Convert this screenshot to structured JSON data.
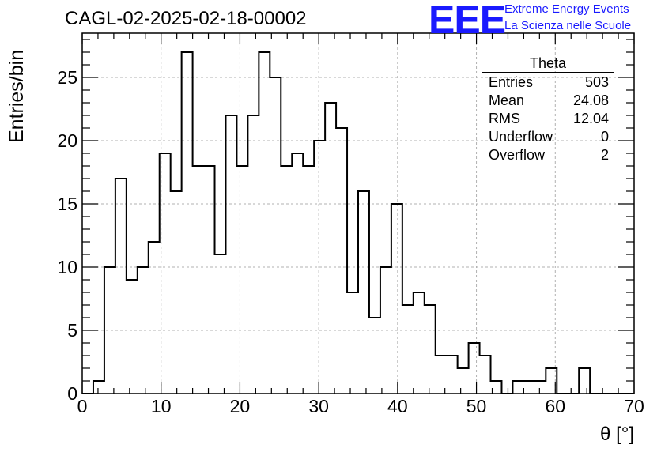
{
  "title": "CAGL-02-2025-02-18-00002",
  "logo": {
    "mark": "EEE",
    "line1": "Extreme Energy Events",
    "line2": "La Scienza nelle Scuole",
    "color": "#1a1aff"
  },
  "stats": {
    "name": "Theta",
    "rows": [
      {
        "label": "Entries",
        "value": "503"
      },
      {
        "label": "Mean",
        "value": "24.08"
      },
      {
        "label": "RMS",
        "value": "12.04"
      },
      {
        "label": "Underflow",
        "value": "0"
      },
      {
        "label": "Overflow",
        "value": "2"
      }
    ]
  },
  "chart_data": {
    "type": "histogram",
    "title": "CAGL-02-2025-02-18-00002",
    "xlabel": "θ [°]",
    "ylabel": "Entries/bin",
    "xlim": [
      0,
      70
    ],
    "ylim": [
      0,
      28.5
    ],
    "bin_width": 1.4,
    "x_ticks": [
      0,
      10,
      20,
      30,
      40,
      50,
      60,
      70
    ],
    "y_ticks": [
      0,
      5,
      10,
      15,
      20,
      25
    ],
    "grid": true,
    "bin_edges": [
      0,
      1.4,
      2.8,
      4.2,
      5.6,
      7.0,
      8.4,
      9.8,
      11.2,
      12.6,
      14.0,
      15.4,
      16.8,
      18.2,
      19.6,
      21.0,
      22.4,
      23.8,
      25.2,
      26.6,
      28.0,
      29.4,
      30.8,
      32.2,
      33.6,
      35.0,
      36.4,
      37.8,
      39.2,
      40.6,
      42.0,
      43.4,
      44.8,
      46.2,
      47.6,
      49.0,
      50.4,
      51.8,
      53.2,
      54.6,
      56.0,
      57.4,
      58.8,
      60.2,
      61.6,
      63.0,
      64.4,
      65.8,
      67.2,
      68.6,
      70.0
    ],
    "counts": [
      0,
      1,
      10,
      17,
      9,
      10,
      12,
      19,
      16,
      27,
      18,
      18,
      11,
      22,
      18,
      22,
      27,
      25,
      18,
      19,
      18,
      20,
      23,
      21,
      8,
      16,
      6,
      10,
      15,
      7,
      8,
      7,
      3,
      3,
      2,
      4,
      3,
      1,
      0,
      1,
      1,
      1,
      2,
      0,
      0,
      2,
      0,
      0,
      0,
      0
    ],
    "line_color": "#000000",
    "grid_color": "#b0b0b0"
  }
}
